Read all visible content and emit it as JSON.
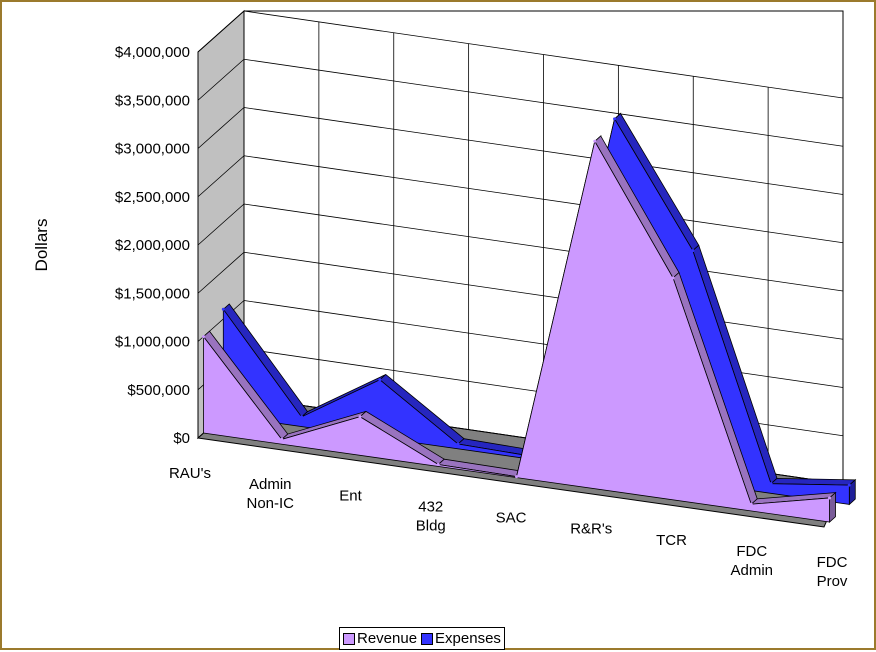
{
  "chart_data": {
    "type": "area",
    "variant": "3d",
    "categories": [
      "RAU's",
      "Admin Non-IC",
      "Ent",
      "432 Bldg",
      "SAC",
      "R&R's",
      "TCR",
      "FDC Admin",
      "FDC Prov"
    ],
    "category_lines": [
      [
        "RAU's"
      ],
      [
        "Admin",
        "Non-IC"
      ],
      [
        "Ent"
      ],
      [
        "432",
        "Bldg"
      ],
      [
        "SAC"
      ],
      [
        "R&R's"
      ],
      [
        "TCR"
      ],
      [
        "FDC",
        "Admin"
      ],
      [
        "FDC",
        "Prov"
      ]
    ],
    "series": [
      {
        "name": "Revenue",
        "values": [
          1000000,
          50000,
          400000,
          20000,
          10000,
          3600000,
          2300000,
          70000,
          250000
        ],
        "color": "#cc99ff"
      },
      {
        "name": "Expenses",
        "values": [
          1100000,
          100000,
          600000,
          50000,
          30000,
          3650000,
          2400000,
          100000,
          200000
        ],
        "color": "#3333ff"
      }
    ],
    "ylabel": "Dollars",
    "yticks": [
      "$0",
      "$500,000",
      "$1,000,000",
      "$1,500,000",
      "$2,000,000",
      "$2,500,000",
      "$3,000,000",
      "$3,500,000",
      "$4,000,000"
    ],
    "ylim": [
      0,
      4000000
    ],
    "grid": true,
    "legend": "bottom",
    "wall_color": "#c0c0c0",
    "border_color": "#9b7a2d"
  }
}
